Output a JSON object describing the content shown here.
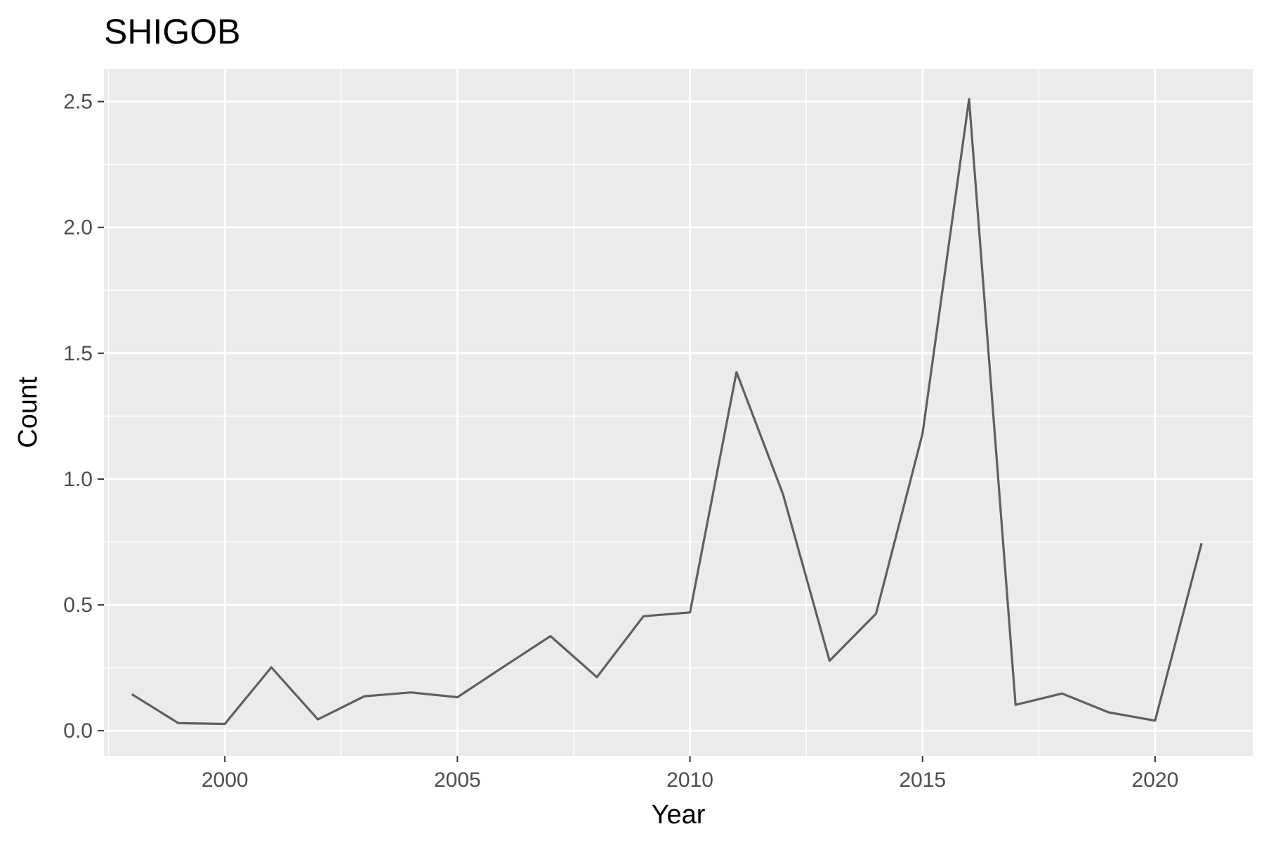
{
  "chart_data": {
    "type": "line",
    "title": "SHIGOB",
    "xlabel": "Year",
    "ylabel": "Count",
    "xlim": [
      1997.4,
      2022.1
    ],
    "ylim": [
      -0.1,
      2.63
    ],
    "x_ticks": [
      2000,
      2005,
      2010,
      2015,
      2020
    ],
    "y_ticks": [
      0.0,
      0.5,
      1.0,
      1.5,
      2.0,
      2.5
    ],
    "x_tick_labels": [
      "2000",
      "2005",
      "2010",
      "2015",
      "2020"
    ],
    "y_tick_labels": [
      "0.0",
      "0.5",
      "1.0",
      "1.5",
      "2.0",
      "2.5"
    ],
    "grid": true,
    "series": [
      {
        "x": [
          1998,
          1999,
          2000,
          2001,
          2002,
          2003,
          2004,
          2005,
          2006,
          2007,
          2008,
          2009,
          2010,
          2011,
          2012,
          2013,
          2014,
          2015,
          2016,
          2017,
          2018,
          2019,
          2020,
          2021
        ],
        "values": [
          0.145,
          0.03,
          0.027,
          0.252,
          0.045,
          0.137,
          0.152,
          0.133,
          0.255,
          0.376,
          0.213,
          0.455,
          0.47,
          1.425,
          0.94,
          0.278,
          0.465,
          1.18,
          2.51,
          0.103,
          0.148,
          0.073,
          0.04,
          0.745
        ]
      }
    ],
    "colors": {
      "panel": "#ebebeb",
      "grid": "#ffffff",
      "line": "#5f5f5f",
      "tick": "#333333"
    }
  }
}
